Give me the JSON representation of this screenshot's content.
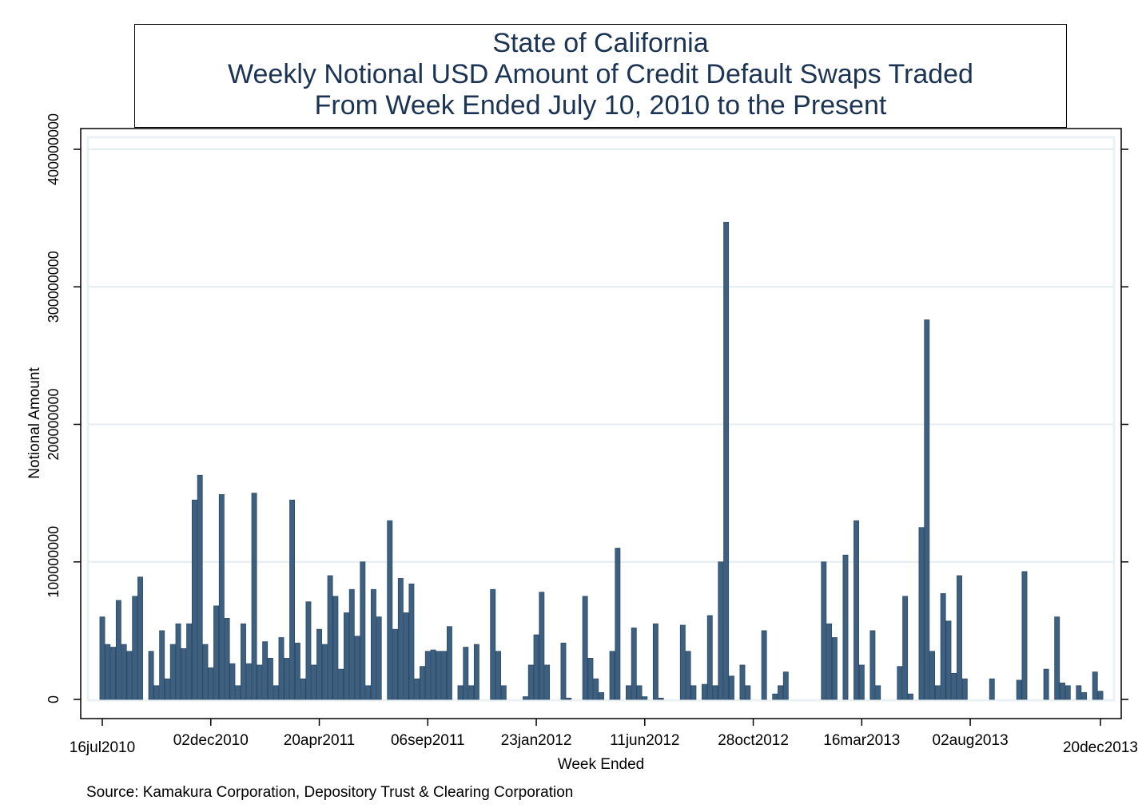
{
  "chart_data": {
    "type": "bar",
    "title": [
      "State of California",
      "Weekly Notional USD Amount of Credit Default Swaps Traded",
      "From Week Ended July 10, 2010 to the Present"
    ],
    "xlabel": "Week Ended",
    "ylabel": "Notional Amount",
    "ylim": [
      0,
      400000000
    ],
    "yticks": [
      0,
      100000000,
      200000000,
      300000000,
      400000000
    ],
    "ytick_labels": [
      "0",
      "100000000",
      "200000000",
      "300000000",
      "400000000"
    ],
    "xlim": [
      "2010-07-16",
      "2013-12-20"
    ],
    "xtick_labels": [
      "16jul2010",
      "02dec2010",
      "20apr2011",
      "06sep2011",
      "23jan2012",
      "11jun2012",
      "28oct2012",
      "16mar2013",
      "02aug2013",
      "20dec2013"
    ],
    "grid": true,
    "bar_color": "#3d5f80",
    "first_week": "16jul2010",
    "last_week": "20dec2013",
    "values": [
      60000000,
      40000000,
      38000000,
      72000000,
      40000000,
      35000000,
      75000000,
      89000000,
      0,
      35000000,
      10000000,
      50000000,
      15000000,
      40000000,
      55000000,
      37000000,
      55000000,
      145000000,
      163000000,
      40000000,
      23000000,
      68000000,
      149000000,
      59000000,
      26000000,
      10000000,
      55000000,
      26000000,
      150000000,
      25000000,
      42000000,
      30000000,
      10000000,
      45000000,
      30000000,
      145000000,
      41000000,
      15000000,
      71000000,
      25000000,
      51000000,
      40000000,
      90000000,
      75000000,
      22000000,
      63000000,
      80000000,
      46000000,
      100000000,
      10000000,
      80000000,
      60000000,
      0,
      130000000,
      51000000,
      88000000,
      63000000,
      84000000,
      15000000,
      24000000,
      35000000,
      36000000,
      35000000,
      35000000,
      53000000,
      0,
      10000000,
      38000000,
      10000000,
      40000000,
      0,
      0,
      80000000,
      35000000,
      10000000,
      0,
      0,
      0,
      2000000,
      25000000,
      47000000,
      78000000,
      25000000,
      0,
      0,
      41000000,
      1000000,
      0,
      0,
      75000000,
      30000000,
      15000000,
      5000000,
      0,
      35000000,
      110000000,
      0,
      10000000,
      52000000,
      10000000,
      2000000,
      0,
      55000000,
      1000000,
      0,
      0,
      0,
      54000000,
      35000000,
      10000000,
      0,
      11000000,
      61000000,
      10000000,
      100000000,
      347000000,
      17000000,
      0,
      25000000,
      10000000,
      0,
      0,
      50000000,
      0,
      4000000,
      10000000,
      20000000,
      0,
      0,
      0,
      0,
      0,
      0,
      100000000,
      55000000,
      45000000,
      0,
      105000000,
      0,
      130000000,
      25000000,
      0,
      50000000,
      10000000,
      0,
      0,
      0,
      24000000,
      75000000,
      4000000,
      0,
      125000000,
      276000000,
      35000000,
      10000000,
      77000000,
      57000000,
      19000000,
      90000000,
      15000000,
      0,
      0,
      0,
      0,
      15000000,
      0,
      0,
      0,
      0,
      14000000,
      93000000,
      0,
      0,
      0,
      22000000,
      0,
      60000000,
      12000000,
      10000000,
      0,
      10000000,
      5000000,
      0,
      20000000,
      6000000
    ],
    "source_note": "Source: Kamakura Corporation, Depository Trust & Clearing Corporation"
  }
}
